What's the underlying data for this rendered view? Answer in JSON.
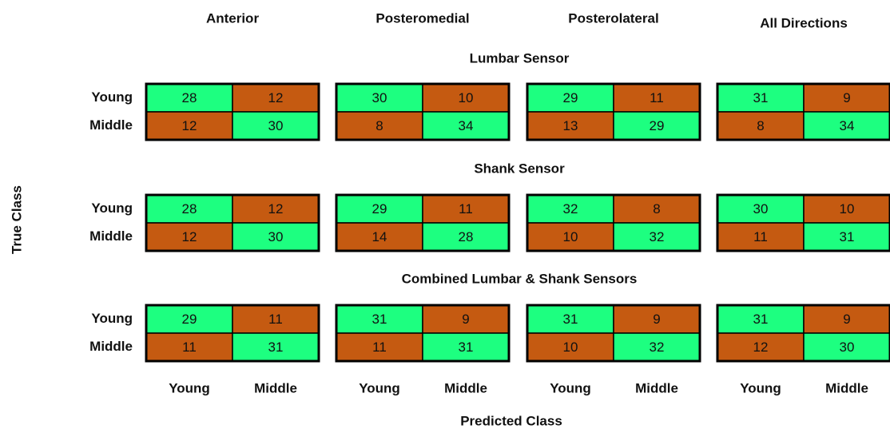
{
  "directions": [
    "Anterior",
    "Posteromedial",
    "Posterolateral",
    "All Directions"
  ],
  "classes": [
    "Young",
    "Middle"
  ],
  "y_label": "True Class",
  "x_label": "Predicted Class",
  "colors": {
    "correct": "#1dff80",
    "wrong": "#c55a11"
  },
  "sections": [
    {
      "title": "Lumbar Sensor",
      "matrices": [
        [
          [
            28,
            12
          ],
          [
            12,
            30
          ]
        ],
        [
          [
            30,
            10
          ],
          [
            8,
            34
          ]
        ],
        [
          [
            29,
            11
          ],
          [
            13,
            29
          ]
        ],
        [
          [
            31,
            9
          ],
          [
            8,
            34
          ]
        ]
      ]
    },
    {
      "title": "Shank Sensor",
      "matrices": [
        [
          [
            28,
            12
          ],
          [
            12,
            30
          ]
        ],
        [
          [
            29,
            11
          ],
          [
            14,
            28
          ]
        ],
        [
          [
            32,
            8
          ],
          [
            10,
            32
          ]
        ],
        [
          [
            30,
            10
          ],
          [
            11,
            31
          ]
        ]
      ]
    },
    {
      "title": "Combined Lumbar & Shank Sensors",
      "matrices": [
        [
          [
            29,
            11
          ],
          [
            11,
            31
          ]
        ],
        [
          [
            31,
            9
          ],
          [
            11,
            31
          ]
        ],
        [
          [
            31,
            9
          ],
          [
            10,
            32
          ]
        ],
        [
          [
            31,
            9
          ],
          [
            12,
            30
          ]
        ]
      ]
    }
  ]
}
